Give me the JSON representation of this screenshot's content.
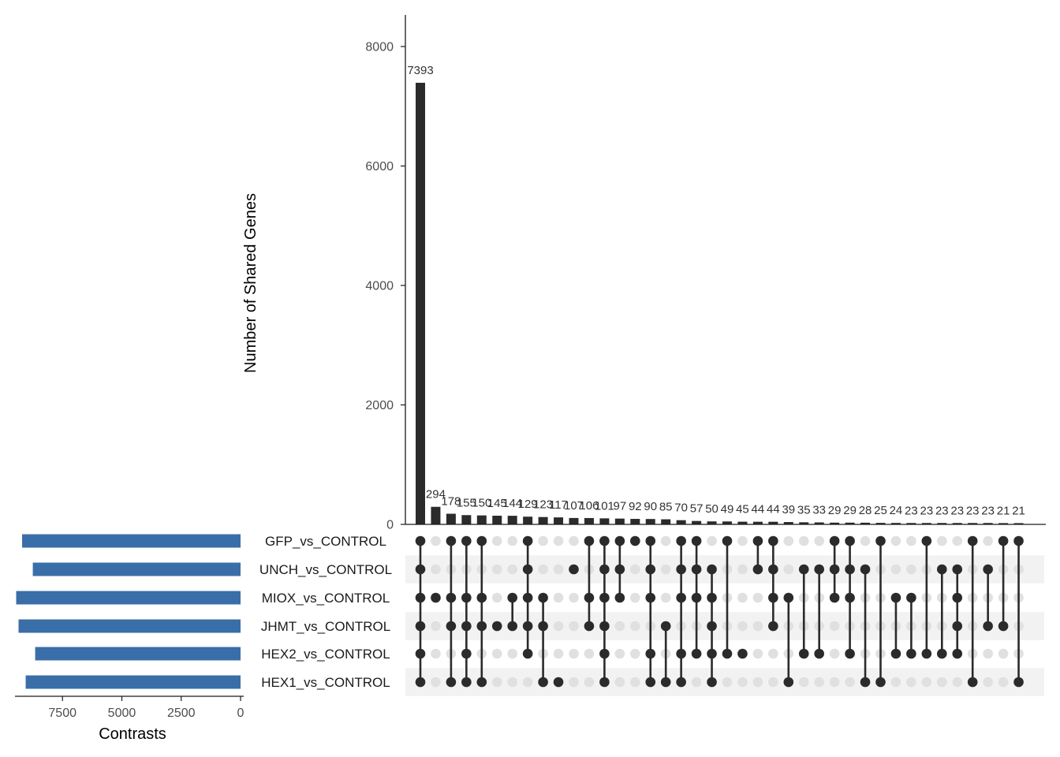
{
  "chart_data": {
    "type": "upset",
    "ylabel": "Number of Shared Genes",
    "xlabel_sets": "Contrasts",
    "ylim": [
      0,
      8500
    ],
    "yticks": [
      0,
      2000,
      4000,
      6000,
      8000
    ],
    "set_size_ticks": [
      7500,
      5000,
      2500,
      0
    ],
    "set_size_xlim": [
      0,
      9500
    ],
    "colors": {
      "bar": "#2b2b2b",
      "set_bar": "#3a6ea8",
      "dot_on": "#2b2b2b",
      "dot_off": "#e0e0e0",
      "stripe": "#f2f2f2"
    },
    "sets": [
      {
        "name": "GFP_vs_CONTROL",
        "size": 9200
      },
      {
        "name": "UNCH_vs_CONTROL",
        "size": 8750
      },
      {
        "name": "MIOX_vs_CONTROL",
        "size": 9450
      },
      {
        "name": "JHMT_vs_CONTROL",
        "size": 9350
      },
      {
        "name": "HEX2_vs_CONTROL",
        "size": 8650
      },
      {
        "name": "HEX1_vs_CONTROL",
        "size": 9050
      }
    ],
    "intersections": [
      {
        "count": 7393,
        "label": "7393",
        "sets": [
          0,
          1,
          2,
          3,
          4,
          5
        ]
      },
      {
        "count": 294,
        "label": "294",
        "sets": [
          2
        ]
      },
      {
        "count": 178,
        "label": "178",
        "sets": [
          0,
          2,
          3,
          5
        ]
      },
      {
        "count": 155,
        "label": "155",
        "sets": [
          0,
          2,
          3,
          4,
          5
        ]
      },
      {
        "count": 150,
        "label": "150",
        "sets": [
          0,
          2,
          3,
          5
        ]
      },
      {
        "count": 145,
        "label": "145",
        "sets": [
          3
        ]
      },
      {
        "count": 144,
        "label": "144",
        "sets": [
          2,
          3
        ]
      },
      {
        "count": 129,
        "label": "129",
        "sets": [
          0,
          1,
          2,
          3,
          4
        ]
      },
      {
        "count": 123,
        "label": "123",
        "sets": [
          2,
          3,
          5
        ]
      },
      {
        "count": 117,
        "label": "117",
        "sets": [
          5
        ]
      },
      {
        "count": 107,
        "label": "107",
        "sets": [
          1
        ]
      },
      {
        "count": 106,
        "label": "106",
        "sets": [
          0,
          2,
          3
        ]
      },
      {
        "count": 101,
        "label": "101",
        "sets": [
          0,
          1,
          2,
          3,
          4,
          5
        ]
      },
      {
        "count": 97,
        "label": "97",
        "sets": [
          0,
          1,
          2
        ]
      },
      {
        "count": 92,
        "label": "92",
        "sets": [
          0
        ]
      },
      {
        "count": 90,
        "label": "90",
        "sets": [
          0,
          1,
          2,
          4,
          5
        ]
      },
      {
        "count": 85,
        "label": "85",
        "sets": [
          3,
          5
        ]
      },
      {
        "count": 70,
        "label": "70",
        "sets": [
          0,
          1,
          2,
          4,
          5
        ]
      },
      {
        "count": 57,
        "label": "57",
        "sets": [
          0,
          1,
          2,
          4
        ]
      },
      {
        "count": 50,
        "label": "50",
        "sets": [
          1,
          2,
          3,
          4,
          5
        ]
      },
      {
        "count": 49,
        "label": "49",
        "sets": [
          0,
          4
        ]
      },
      {
        "count": 45,
        "label": "45",
        "sets": [
          4
        ]
      },
      {
        "count": 44,
        "label": "44",
        "sets": [
          0,
          1
        ]
      },
      {
        "count": 44,
        "label": "44",
        "sets": [
          0,
          1,
          2,
          3
        ]
      },
      {
        "count": 39,
        "label": "39",
        "sets": [
          2,
          5
        ]
      },
      {
        "count": 35,
        "label": "35",
        "sets": [
          1,
          4
        ]
      },
      {
        "count": 33,
        "label": "33",
        "sets": [
          1,
          4
        ]
      },
      {
        "count": 29,
        "label": "29",
        "sets": [
          0,
          1,
          2
        ]
      },
      {
        "count": 29,
        "label": "29",
        "sets": [
          0,
          1,
          2,
          4
        ]
      },
      {
        "count": 28,
        "label": "28",
        "sets": [
          1,
          5
        ]
      },
      {
        "count": 25,
        "label": "25",
        "sets": [
          0,
          5
        ]
      },
      {
        "count": 24,
        "label": "24",
        "sets": [
          2,
          4
        ]
      },
      {
        "count": 23,
        "label": "23",
        "sets": [
          2,
          4
        ]
      },
      {
        "count": 23,
        "label": "23",
        "sets": [
          0,
          4
        ]
      },
      {
        "count": 23,
        "label": "23",
        "sets": [
          1,
          4
        ]
      },
      {
        "count": 23,
        "label": "23",
        "sets": [
          1,
          2,
          3,
          4
        ]
      },
      {
        "count": 23,
        "label": "23",
        "sets": [
          0,
          5
        ]
      },
      {
        "count": 23,
        "label": "23",
        "sets": [
          1,
          3
        ]
      },
      {
        "count": 21,
        "label": "21",
        "sets": [
          0,
          3
        ]
      },
      {
        "count": 21,
        "label": "21",
        "sets": [
          0,
          5
        ]
      }
    ]
  }
}
